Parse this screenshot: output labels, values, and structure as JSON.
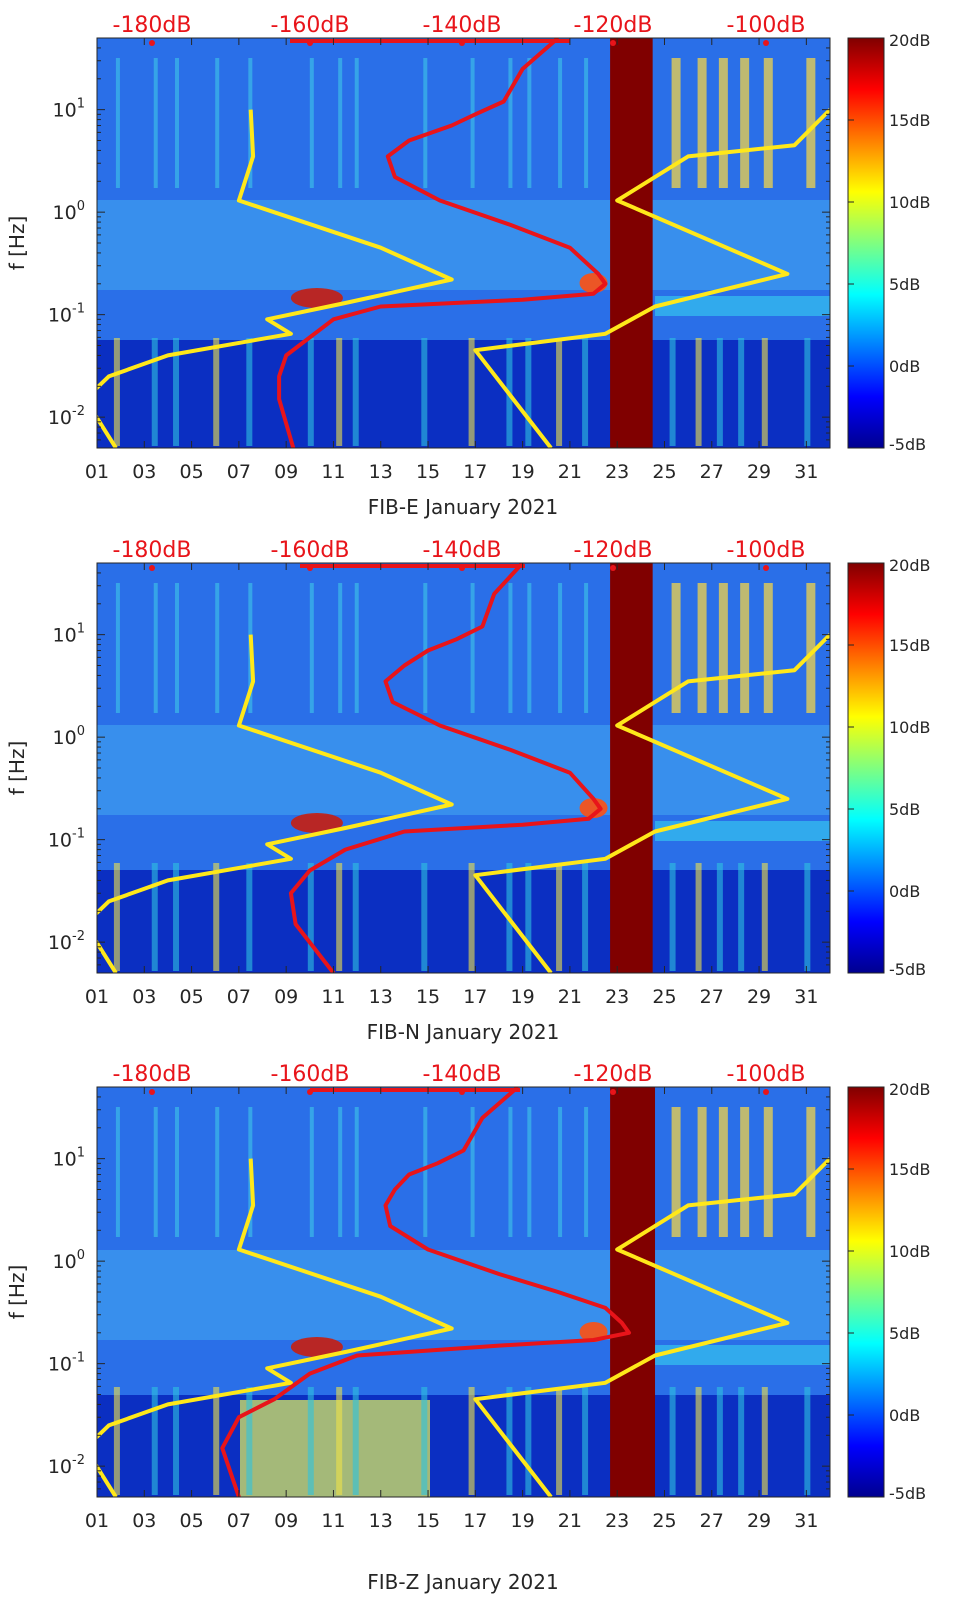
{
  "chart_data": [
    {
      "type": "heatmap",
      "panel_id": "E",
      "xlabel": "FIB-E January 2021",
      "ylabel": "f [Hz]",
      "x_ticks": [
        "01",
        "03",
        "05",
        "07",
        "09",
        "11",
        "13",
        "15",
        "17",
        "19",
        "21",
        "23",
        "25",
        "27",
        "29",
        "31"
      ],
      "x_range_days": [
        1,
        32
      ],
      "y_range_hz": [
        0.005,
        50
      ],
      "y_scale": "log",
      "y_ticks": [
        "10-2",
        "100",
        "101",
        "10-1"
      ],
      "top_scale_labels": [
        "-180dB",
        "-160dB",
        "-140dB",
        "-120dB",
        "-100dB"
      ],
      "colorbar": {
        "labels": [
          "20dB",
          "15dB",
          "10dB",
          "5dB",
          "0dB",
          "-5dB"
        ],
        "range_db": [
          -5,
          20
        ]
      },
      "data_gap_days": [
        22.7,
        24.5
      ],
      "yellow_line": {
        "segments": [
          [
            [
              7.5,
              10
            ],
            [
              7.6,
              3.5
            ],
            [
              7.0,
              1.3
            ],
            [
              13.0,
              0.45
            ],
            [
              16.0,
              0.22
            ],
            [
              11.5,
              0.13
            ],
            [
              8.2,
              0.09
            ],
            [
              9.2,
              0.065
            ],
            [
              4.0,
              0.04
            ],
            [
              1.5,
              0.025
            ],
            [
              0.5,
              0.015
            ],
            [
              1.8,
              0.005
            ]
          ],
          [
            [
              32,
              10
            ],
            [
              30.5,
              4.5
            ],
            [
              26,
              3.5
            ],
            [
              23.0,
              1.3
            ],
            [
              30.2,
              0.25
            ],
            [
              24.6,
              0.12
            ],
            [
              22.5,
              0.065
            ],
            [
              17.0,
              0.045
            ],
            [
              20.2,
              0.005
            ]
          ]
        ]
      },
      "red_line": {
        "points": [
          [
            20.5,
            50
          ],
          [
            19.0,
            25
          ],
          [
            18.2,
            12
          ],
          [
            17.0,
            9
          ],
          [
            16.0,
            7
          ],
          [
            14.2,
            5
          ],
          [
            13.3,
            3.5
          ],
          [
            13.6,
            2.2
          ],
          [
            15.5,
            1.3
          ],
          [
            18.5,
            0.75
          ],
          [
            21.0,
            0.45
          ],
          [
            22.2,
            0.25
          ],
          [
            22.5,
            0.2
          ],
          [
            22.0,
            0.16
          ],
          [
            19.0,
            0.14
          ],
          [
            13.0,
            0.12
          ],
          [
            11.0,
            0.09
          ],
          [
            10.0,
            0.06
          ],
          [
            9.0,
            0.04
          ],
          [
            8.7,
            0.025
          ],
          [
            8.7,
            0.015
          ],
          [
            9.3,
            0.005
          ]
        ]
      }
    },
    {
      "type": "heatmap",
      "panel_id": "N",
      "xlabel": "FIB-N January 2021",
      "ylabel": "f [Hz]",
      "x_ticks": [
        "01",
        "03",
        "05",
        "07",
        "09",
        "11",
        "13",
        "15",
        "17",
        "19",
        "21",
        "23",
        "25",
        "27",
        "29",
        "31"
      ],
      "x_range_days": [
        1,
        32
      ],
      "y_range_hz": [
        0.005,
        50
      ],
      "y_scale": "log",
      "y_ticks": [
        "10-2",
        "100",
        "101",
        "10-1"
      ],
      "top_scale_labels": [
        "-180dB",
        "-160dB",
        "-140dB",
        "-120dB",
        "-100dB"
      ],
      "colorbar": {
        "labels": [
          "20dB",
          "15dB",
          "10dB",
          "5dB",
          "0dB",
          "-5dB"
        ],
        "range_db": [
          -5,
          20
        ]
      },
      "data_gap_days": [
        22.7,
        24.5
      ],
      "yellow_line": {
        "segments": [
          [
            [
              7.5,
              10
            ],
            [
              7.6,
              3.5
            ],
            [
              7.0,
              1.3
            ],
            [
              13.0,
              0.45
            ],
            [
              16.0,
              0.22
            ],
            [
              11.5,
              0.13
            ],
            [
              8.2,
              0.09
            ],
            [
              9.2,
              0.065
            ],
            [
              4.0,
              0.04
            ],
            [
              1.5,
              0.025
            ],
            [
              0.5,
              0.015
            ],
            [
              1.8,
              0.005
            ]
          ],
          [
            [
              32,
              10
            ],
            [
              30.5,
              4.5
            ],
            [
              26,
              3.5
            ],
            [
              23.0,
              1.3
            ],
            [
              30.2,
              0.25
            ],
            [
              24.6,
              0.12
            ],
            [
              22.5,
              0.065
            ],
            [
              17.0,
              0.045
            ],
            [
              20.2,
              0.005
            ]
          ]
        ]
      },
      "red_line": {
        "points": [
          [
            19.0,
            50
          ],
          [
            17.8,
            25
          ],
          [
            17.3,
            12
          ],
          [
            16.2,
            9
          ],
          [
            15.0,
            7
          ],
          [
            14.0,
            5
          ],
          [
            13.2,
            3.5
          ],
          [
            13.5,
            2.2
          ],
          [
            15.5,
            1.3
          ],
          [
            18.5,
            0.75
          ],
          [
            21.0,
            0.45
          ],
          [
            22.0,
            0.25
          ],
          [
            22.3,
            0.2
          ],
          [
            21.8,
            0.16
          ],
          [
            19.0,
            0.14
          ],
          [
            14.0,
            0.12
          ],
          [
            11.5,
            0.08
          ],
          [
            10.0,
            0.05
          ],
          [
            9.2,
            0.03
          ],
          [
            9.4,
            0.015
          ],
          [
            11.0,
            0.005
          ]
        ]
      }
    },
    {
      "type": "heatmap",
      "panel_id": "Z",
      "xlabel": "FIB-Z January 2021",
      "ylabel": "f [Hz]",
      "x_ticks": [
        "01",
        "03",
        "05",
        "07",
        "09",
        "11",
        "13",
        "15",
        "17",
        "19",
        "21",
        "23",
        "25",
        "27",
        "29",
        "31"
      ],
      "x_range_days": [
        1,
        32
      ],
      "y_range_hz": [
        0.005,
        50
      ],
      "y_scale": "log",
      "y_ticks": [
        "10-2",
        "100",
        "101",
        "10-1"
      ],
      "top_scale_labels": [
        "-180dB",
        "-160dB",
        "-140dB",
        "-120dB",
        "-100dB"
      ],
      "colorbar": {
        "labels": [
          "20dB",
          "15dB",
          "10dB",
          "5dB",
          "0dB",
          "-5dB"
        ],
        "range_db": [
          -5,
          20
        ]
      },
      "data_gap_days": [
        22.7,
        24.6
      ],
      "yellow_line": {
        "segments": [
          [
            [
              7.5,
              10
            ],
            [
              7.6,
              3.5
            ],
            [
              7.0,
              1.3
            ],
            [
              13.0,
              0.45
            ],
            [
              16.0,
              0.22
            ],
            [
              11.5,
              0.13
            ],
            [
              8.2,
              0.09
            ],
            [
              9.2,
              0.065
            ],
            [
              4.0,
              0.04
            ],
            [
              1.5,
              0.025
            ],
            [
              0.5,
              0.015
            ],
            [
              1.8,
              0.005
            ]
          ],
          [
            [
              32,
              10
            ],
            [
              30.5,
              4.5
            ],
            [
              26,
              3.5
            ],
            [
              23.0,
              1.3
            ],
            [
              30.2,
              0.25
            ],
            [
              24.6,
              0.12
            ],
            [
              22.5,
              0.065
            ],
            [
              17.0,
              0.045
            ],
            [
              20.2,
              0.005
            ]
          ]
        ]
      },
      "red_line": {
        "points": [
          [
            18.8,
            50
          ],
          [
            17.3,
            25
          ],
          [
            16.5,
            12
          ],
          [
            15.4,
            9
          ],
          [
            14.2,
            7
          ],
          [
            13.6,
            5
          ],
          [
            13.2,
            3.5
          ],
          [
            13.4,
            2.2
          ],
          [
            15.0,
            1.3
          ],
          [
            18.0,
            0.75
          ],
          [
            20.5,
            0.5
          ],
          [
            22.5,
            0.35
          ],
          [
            23.2,
            0.25
          ],
          [
            23.5,
            0.2
          ],
          [
            22.0,
            0.17
          ],
          [
            18.0,
            0.15
          ],
          [
            12.0,
            0.12
          ],
          [
            10.0,
            0.08
          ],
          [
            8.5,
            0.045
          ],
          [
            7.0,
            0.03
          ],
          [
            6.3,
            0.015
          ],
          [
            7.0,
            0.005
          ]
        ]
      }
    }
  ],
  "colors": {
    "red_line": "#e8141a",
    "yellow_line": "#ffe81a",
    "gap_fill": "#800000",
    "label_red": "#e8141a"
  }
}
